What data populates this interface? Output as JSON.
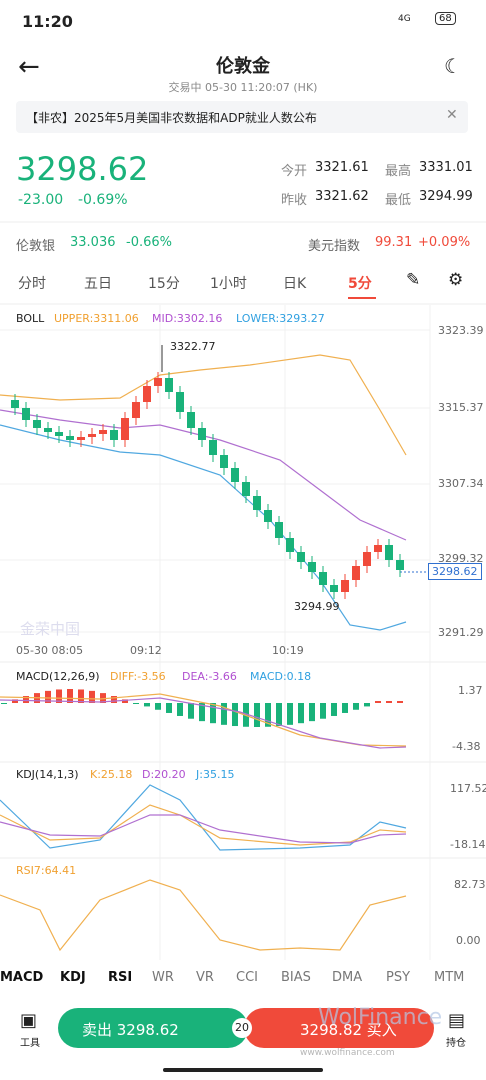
{
  "status": {
    "time": "11:20",
    "network": "4G",
    "battery": "68"
  },
  "header": {
    "title": "伦敦金",
    "subtitle": "交易中  05-30 11:20:07 (HK)"
  },
  "notice": "【非农】2025年5月美国非农数据和ADP就业人数公布",
  "quote": {
    "price": "3298.62",
    "change": "-23.00",
    "change_pct": "-0.69%",
    "stats": [
      {
        "label": "今开",
        "value": "3321.61"
      },
      {
        "label": "最高",
        "value": "3331.01"
      },
      {
        "label": "昨收",
        "value": "3321.62"
      },
      {
        "label": "最低",
        "value": "3294.99"
      }
    ]
  },
  "related": [
    {
      "name": "伦敦银",
      "value": "33.036",
      "pct": "-0.66%"
    },
    {
      "name": "美元指数",
      "value": "99.31",
      "pct": "+0.09%"
    }
  ],
  "tabs": [
    "分时",
    "五日",
    "15分",
    "1小时",
    "日K",
    "5分"
  ],
  "boll": {
    "name": "BOLL",
    "upper": "UPPER:3311.06",
    "mid": "MID:3302.16",
    "lower": "LOWER:3293.27"
  },
  "price_axis": [
    "3323.39",
    "3315.37",
    "3307.34",
    "3299.32",
    "3291.29"
  ],
  "current": "3298.62",
  "high_label": "3322.77",
  "low_label": "3294.99",
  "time_axis": [
    "05-30 08:05",
    "09:12",
    "10:19"
  ],
  "macd": {
    "name": "MACD(12,26,9)",
    "diff": "DIFF:-3.56",
    "dea": "DEA:-3.66",
    "macd": "MACD:0.18",
    "axis": [
      "1.37",
      "-4.38"
    ]
  },
  "kdj": {
    "name": "KDJ(14,1,3)",
    "k": "K:25.18",
    "d": "D:20.20",
    "j": "J:35.15",
    "axis": [
      "117.52",
      "-18.14"
    ]
  },
  "rsi": {
    "name": "RSI7:64.41",
    "axis": [
      "82.73",
      "0.00"
    ]
  },
  "indicators": [
    "MACD",
    "KDJ",
    "RSI",
    "WR",
    "VR",
    "CCI",
    "BIAS",
    "DMA",
    "PSY",
    "MTM"
  ],
  "bottom": {
    "tools": "工具",
    "sell": "卖出 3298.62",
    "spread": "20",
    "buy": "3298.82 买入",
    "position": "持仓"
  },
  "watermark": {
    "logo": "金荣中国",
    "brand": "WolFinance",
    "url": "www.wolfinance.com"
  }
}
